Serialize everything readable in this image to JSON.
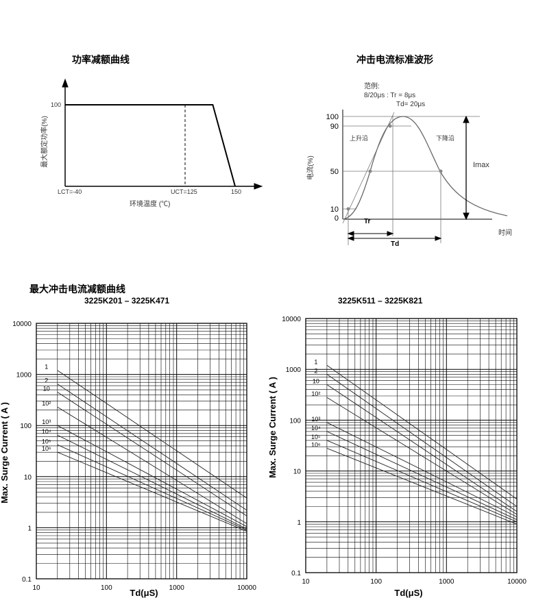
{
  "titles": {
    "derating": "功率减额曲线",
    "waveform": "冲击电流标准波形",
    "surge_section": "最大冲击电流减额曲线"
  },
  "chart_data": [
    {
      "type": "line",
      "title": "功率减额曲线",
      "xlabel": "环境温度 (℃)",
      "ylabel": "最大额定功率(%)",
      "x_ticks": [
        "LCT=-40",
        "UCT=125",
        "150"
      ],
      "y_ticks": [
        "100"
      ],
      "series": [
        {
          "x": [
            -40,
            125,
            150
          ],
          "y": [
            100,
            100,
            0
          ]
        }
      ]
    },
    {
      "type": "line",
      "title": "冲击电流标准波形",
      "xlabel": "时间",
      "ylabel": "电流(%)",
      "y_ticks": [
        "0",
        "10",
        "50",
        "90",
        "100"
      ],
      "annotations": {
        "example_label": "范例:",
        "example_line1": "8/20μs : Tr = 8μs",
        "example_line2": "Td= 20μs",
        "rise": "上升沿",
        "fall": "下降沿",
        "imax": "Imax",
        "tr": "Tr",
        "td": "Td"
      }
    },
    {
      "type": "line",
      "title": "3225K201 – 3225K471",
      "xlabel": "Td(μS)",
      "ylabel": "Max. Surge Current ( A )",
      "xscale": "log",
      "yscale": "log",
      "xlim": [
        10,
        10000
      ],
      "ylim": [
        0.1,
        10000
      ],
      "x_ticks": [
        "10",
        "100",
        "1000",
        "10000"
      ],
      "y_ticks": [
        "0.1",
        "1",
        "10",
        "100",
        "1000",
        "10000"
      ],
      "series": [
        {
          "name": "1",
          "x": [
            20,
            10000
          ],
          "y": [
            1200,
            3.8
          ]
        },
        {
          "name": "2",
          "x": [
            20,
            10000
          ],
          "y": [
            650,
            2.2
          ]
        },
        {
          "name": "10",
          "x": [
            20,
            10000
          ],
          "y": [
            450,
            1.7
          ]
        },
        {
          "name": "10²",
          "x": [
            20,
            10000
          ],
          "y": [
            230,
            1.2
          ]
        },
        {
          "name": "10³",
          "x": [
            20,
            10000
          ],
          "y": [
            100,
            1.05
          ]
        },
        {
          "name": "10⁴",
          "x": [
            20,
            10000
          ],
          "y": [
            65,
            0.95
          ]
        },
        {
          "name": "10⁵",
          "x": [
            20,
            10000
          ],
          "y": [
            42,
            0.9
          ]
        },
        {
          "name": "10⁶",
          "x": [
            20,
            10000
          ],
          "y": [
            30,
            0.85
          ]
        }
      ]
    },
    {
      "type": "line",
      "title": "3225K511 – 3225K821",
      "xlabel": "Td(μS)",
      "ylabel": "Max. Surge Current ( A )",
      "xscale": "log",
      "yscale": "log",
      "xlim": [
        10,
        10000
      ],
      "ylim": [
        0.1,
        10000
      ],
      "x_ticks": [
        "10",
        "100",
        "1000",
        "10000"
      ],
      "y_ticks": [
        "0.1",
        "1",
        "10",
        "100",
        "1000",
        "10000"
      ],
      "series": [
        {
          "name": "1",
          "x": [
            20,
            10000
          ],
          "y": [
            1200,
            2.8
          ]
        },
        {
          "name": "2",
          "x": [
            20,
            10000
          ],
          "y": [
            800,
            2.0
          ]
        },
        {
          "name": "10",
          "x": [
            20,
            10000
          ],
          "y": [
            500,
            1.6
          ]
        },
        {
          "name": "10²",
          "x": [
            20,
            10000
          ],
          "y": [
            280,
            1.4
          ]
        },
        {
          "name": "10³",
          "x": [
            20,
            10000
          ],
          "y": [
            90,
            1.25
          ]
        },
        {
          "name": "10⁴",
          "x": [
            20,
            10000
          ],
          "y": [
            60,
            1.1
          ]
        },
        {
          "name": "10⁵",
          "x": [
            20,
            10000
          ],
          "y": [
            40,
            1.0
          ]
        },
        {
          "name": "10⁶",
          "x": [
            20,
            10000
          ],
          "y": [
            28,
            0.9
          ]
        }
      ]
    }
  ]
}
